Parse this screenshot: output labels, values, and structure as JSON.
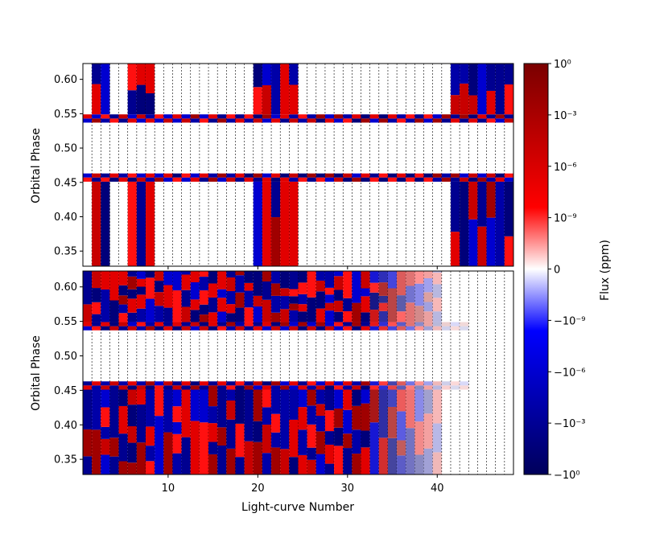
{
  "chart_data": {
    "type": "heatmap",
    "xlabel": "Light-curve Number",
    "ylabel": "Orbital Phase",
    "xlim": [
      0.5,
      48.5
    ],
    "ylim": [
      0.328,
      0.623
    ],
    "x_ticks": [
      "10",
      "20",
      "30",
      "40"
    ],
    "x_tick_values": [
      10,
      20,
      30,
      40
    ],
    "y_ticks": [
      "0.35",
      "0.40",
      "0.45",
      "0.50",
      "0.55",
      "0.60"
    ],
    "y_tick_values": [
      0.35,
      0.4,
      0.45,
      0.5,
      0.55,
      0.6
    ],
    "masked_phase_range": [
      0.463,
      0.537
    ],
    "num_light_curves": 48,
    "colorbar": {
      "label": "Flux (ppm)",
      "ticks": [
        "10⁰",
        "10⁻³",
        "10⁻⁶",
        "10⁻⁹",
        "0",
        "−10⁻⁹",
        "−10⁻⁶",
        "−10⁻³",
        "−10⁰"
      ],
      "colors": [
        "#7a0000",
        "#ff0000",
        "#ffffff",
        "#0000ff",
        "#00005a"
      ]
    },
    "panels": [
      {
        "name": "top",
        "tall_columns": [
          2,
          3,
          6,
          7,
          8,
          20,
          21,
          22,
          23,
          24,
          42,
          43,
          44,
          45,
          46,
          47,
          48
        ],
        "filled_columns": [
          1,
          2,
          3,
          6,
          7,
          8,
          20,
          21,
          22,
          23,
          24,
          42,
          43,
          44,
          45,
          46,
          47,
          48
        ]
      },
      {
        "name": "bottom",
        "tall_columns": [
          1,
          2,
          3,
          4,
          5,
          6,
          7,
          8,
          9,
          10,
          11,
          12,
          13,
          14,
          15,
          16,
          17,
          18,
          19,
          20,
          21,
          22,
          23,
          24,
          25,
          26,
          27,
          28,
          29,
          30,
          31,
          32,
          33,
          34,
          35,
          36,
          37,
          38,
          39,
          40
        ],
        "fading_columns": [
          33,
          34,
          35,
          36,
          37,
          38,
          39,
          40,
          41,
          42,
          43
        ]
      }
    ]
  }
}
